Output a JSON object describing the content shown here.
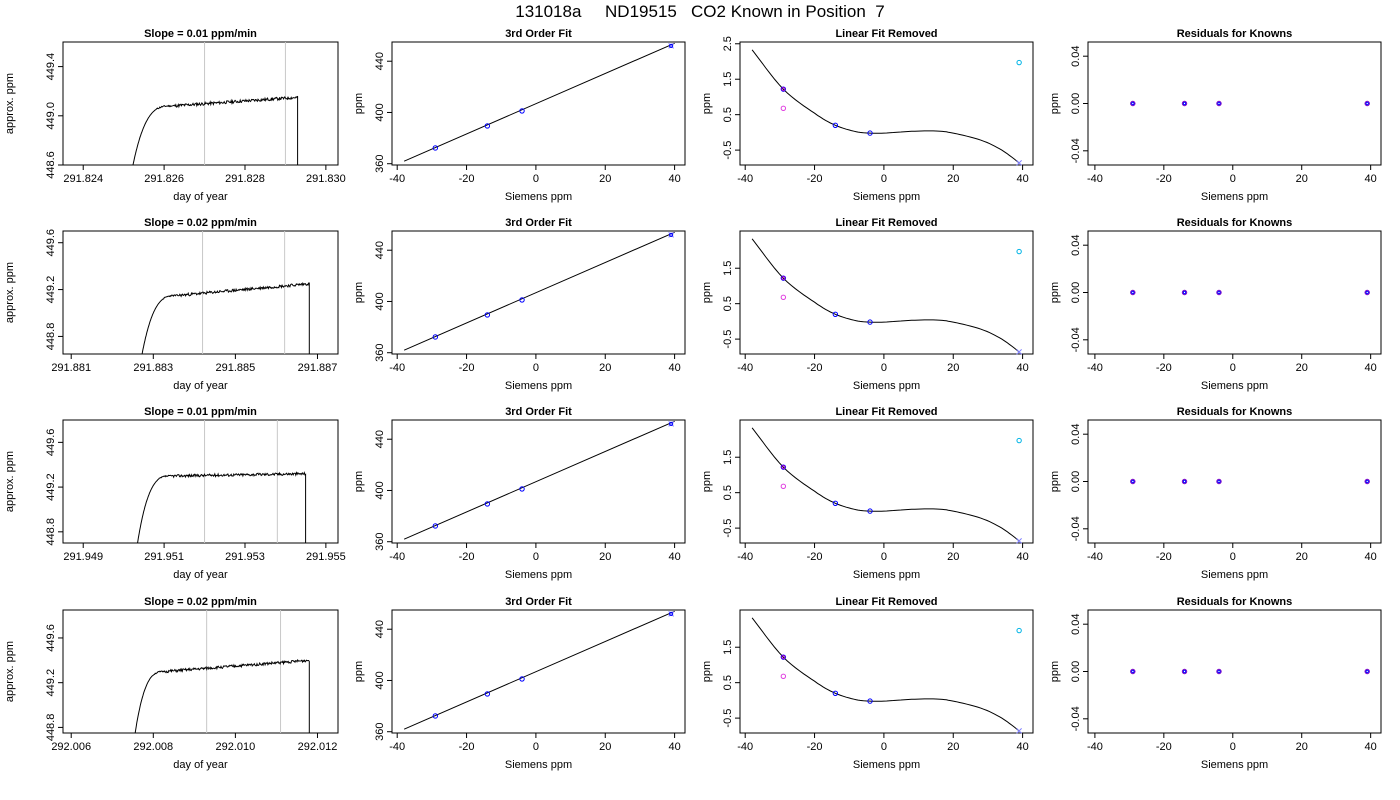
{
  "title": "131018a     ND19515   CO2 Known in Position  7",
  "colors": {
    "trace": "#000000",
    "marker_line": "#c8c8c8",
    "fit_line": "#000000",
    "point_blue": "#0000ff",
    "point_purple": "#a000c8",
    "point_magenta": "#e040e0",
    "point_cyan": "#00b4e6",
    "point_lightblue": "#8080ff",
    "residual_point": "#8000c0"
  },
  "chart_data": [
    {
      "type": "line",
      "panel": "trace-1",
      "title": "Slope =  0.01  ppm/min",
      "xlabel": "day of year",
      "ylabel": "approx. ppm",
      "xlim": [
        291.8235,
        291.8303
      ],
      "ylim": [
        448.6,
        449.6
      ],
      "xticks": [
        291.824,
        291.826,
        291.828,
        291.83
      ],
      "xtick_labels": [
        "291.824",
        "291.826",
        "291.828",
        "291.830"
      ],
      "yticks": [
        448.6,
        449.0,
        449.4
      ],
      "ytick_labels": [
        "448.6",
        "449.0",
        "449.4"
      ],
      "marker_lines": [
        291.827,
        291.829
      ],
      "trace": {
        "start": 291.8252,
        "rise_end": 291.8262,
        "end": 291.8293,
        "low": 448.55,
        "plateau_start": 449.08,
        "plateau_end": 449.15,
        "noise": 0.012,
        "seed": 11
      }
    },
    {
      "type": "line",
      "panel": "trace-2",
      "title": "Slope =  0.02  ppm/min",
      "xlabel": "day of year",
      "ylabel": "approx. ppm",
      "xlim": [
        291.8808,
        291.8875
      ],
      "ylim": [
        448.65,
        449.7
      ],
      "xticks": [
        291.881,
        291.883,
        291.885,
        291.887
      ],
      "xtick_labels": [
        "291.881",
        "291.883",
        "291.885",
        "291.887"
      ],
      "yticks": [
        448.8,
        449.2,
        449.6
      ],
      "ytick_labels": [
        "448.8",
        "449.2",
        "449.6"
      ],
      "marker_lines": [
        291.8842,
        291.8862
      ],
      "trace": {
        "start": 291.8827,
        "rise_end": 291.8836,
        "end": 291.8868,
        "low": 448.6,
        "plateau_start": 449.15,
        "plateau_end": 449.25,
        "noise": 0.012,
        "seed": 23
      }
    },
    {
      "type": "line",
      "panel": "trace-3",
      "title": "Slope =  0.01  ppm/min",
      "xlabel": "day of year",
      "ylabel": "approx. ppm",
      "xlim": [
        291.9485,
        291.9553
      ],
      "ylim": [
        448.7,
        449.8
      ],
      "xticks": [
        291.949,
        291.951,
        291.953,
        291.955
      ],
      "xtick_labels": [
        "291.949",
        "291.951",
        "291.953",
        "291.955"
      ],
      "yticks": [
        448.8,
        449.2,
        449.6
      ],
      "ytick_labels": [
        "448.8",
        "449.2",
        "449.6"
      ],
      "marker_lines": [
        291.952,
        291.9538
      ],
      "trace": {
        "start": 291.9503,
        "rise_end": 291.9512,
        "end": 291.9545,
        "low": 448.6,
        "plateau_start": 449.3,
        "plateau_end": 449.32,
        "noise": 0.012,
        "seed": 37
      }
    },
    {
      "type": "line",
      "panel": "trace-4",
      "title": "Slope =  0.02  ppm/min",
      "xlabel": "day of year",
      "ylabel": "approx. ppm",
      "xlim": [
        292.0058,
        292.0125
      ],
      "ylim": [
        448.75,
        449.85
      ],
      "xticks": [
        292.006,
        292.008,
        292.01,
        292.012
      ],
      "xtick_labels": [
        "292.006",
        "292.008",
        "292.010",
        "292.012"
      ],
      "yticks": [
        448.8,
        449.2,
        449.6
      ],
      "ytick_labels": [
        "448.8",
        "449.2",
        "449.6"
      ],
      "marker_lines": [
        292.0093,
        292.0111
      ],
      "trace": {
        "start": 292.0075,
        "rise_end": 292.0083,
        "end": 292.0118,
        "low": 448.6,
        "plateau_start": 449.3,
        "plateau_end": 449.4,
        "noise": 0.012,
        "seed": 51
      }
    },
    {
      "type": "scatter",
      "panel": "fit-1",
      "title": "3rd Order Fit",
      "xlabel": "Siemens ppm",
      "ylabel": "ppm",
      "xlim": [
        -41.5,
        43
      ],
      "ylim": [
        359,
        455
      ],
      "xticks": [
        -40,
        -20,
        0,
        20,
        40
      ],
      "xtick_labels": [
        "-40",
        "-20",
        "0",
        "20",
        "40"
      ],
      "yticks": [
        360,
        400,
        440
      ],
      "ytick_labels": [
        "360",
        "400",
        "440"
      ],
      "line": {
        "x": [
          -38,
          40
        ],
        "y": [
          362,
          454
        ]
      },
      "points": {
        "x": [
          -29,
          -14,
          -4,
          39
        ],
        "y": [
          372.3,
          389.5,
          401.2,
          452.0
        ]
      }
    },
    {
      "type": "scatter",
      "panel": "fit-2",
      "title": "3rd Order Fit",
      "xlabel": "Siemens ppm",
      "ylabel": "ppm",
      "xlim": [
        -41.5,
        43
      ],
      "ylim": [
        359,
        455
      ],
      "xticks": [
        -40,
        -20,
        0,
        20,
        40
      ],
      "xtick_labels": [
        "-40",
        "-20",
        "0",
        "20",
        "40"
      ],
      "yticks": [
        360,
        400,
        440
      ],
      "ytick_labels": [
        "360",
        "400",
        "440"
      ],
      "line": {
        "x": [
          -38,
          40
        ],
        "y": [
          362,
          454
        ]
      },
      "points": {
        "x": [
          -29,
          -14,
          -4,
          39
        ],
        "y": [
          372.3,
          389.5,
          401.2,
          452.0
        ]
      }
    },
    {
      "type": "scatter",
      "panel": "fit-3",
      "title": "3rd Order Fit",
      "xlabel": "Siemens ppm",
      "ylabel": "ppm",
      "xlim": [
        -41.5,
        43
      ],
      "ylim": [
        359,
        455
      ],
      "xticks": [
        -40,
        -20,
        0,
        20,
        40
      ],
      "xtick_labels": [
        "-40",
        "-20",
        "0",
        "20",
        "40"
      ],
      "yticks": [
        360,
        400,
        440
      ],
      "ytick_labels": [
        "360",
        "400",
        "440"
      ],
      "line": {
        "x": [
          -38,
          40
        ],
        "y": [
          362,
          454
        ]
      },
      "points": {
        "x": [
          -29,
          -14,
          -4,
          39
        ],
        "y": [
          372.3,
          389.5,
          401.2,
          452.0
        ]
      }
    },
    {
      "type": "scatter",
      "panel": "fit-4",
      "title": "3rd Order Fit",
      "xlabel": "Siemens ppm",
      "ylabel": "ppm",
      "xlim": [
        -41.5,
        43
      ],
      "ylim": [
        359,
        455
      ],
      "xticks": [
        -40,
        -20,
        0,
        20,
        40
      ],
      "xtick_labels": [
        "-40",
        "-20",
        "0",
        "20",
        "40"
      ],
      "yticks": [
        360,
        400,
        440
      ],
      "ytick_labels": [
        "360",
        "400",
        "440"
      ],
      "line": {
        "x": [
          -38,
          40
        ],
        "y": [
          362,
          454
        ]
      },
      "points": {
        "x": [
          -29,
          -14,
          -4,
          39
        ],
        "y": [
          372.3,
          389.5,
          401.2,
          452.0
        ]
      }
    },
    {
      "type": "scatter",
      "panel": "lin-1",
      "title": "Linear Fit Removed",
      "xlabel": "Siemens ppm",
      "ylabel": "ppm",
      "xlim": [
        -41.5,
        43
      ],
      "ylim": [
        -0.92,
        2.55
      ],
      "xticks": [
        -40,
        -20,
        0,
        20,
        40
      ],
      "xtick_labels": [
        "-40",
        "-20",
        "0",
        "20",
        "40"
      ],
      "yticks": [
        -0.5,
        0.5,
        1.5,
        2.5
      ],
      "ytick_labels": [
        "-0.5",
        "0.5",
        "1.5",
        "2.5"
      ],
      "curve": {
        "x": [
          -38,
          -29,
          -20,
          -14,
          -8,
          -4,
          0,
          8,
          15,
          20,
          28,
          34,
          39
        ],
        "y": [
          2.33,
          1.22,
          0.54,
          0.2,
          0.02,
          -0.02,
          -0.02,
          0.03,
          0.04,
          -0.02,
          -0.22,
          -0.5,
          -0.86
        ]
      },
      "points": [
        {
          "x": -29,
          "y": 1.22,
          "color": "blue"
        },
        {
          "x": -29,
          "y": 1.22,
          "color": "purple"
        },
        {
          "x": -29,
          "y": 0.68,
          "color": "magenta"
        },
        {
          "x": -14,
          "y": 0.2,
          "color": "blue"
        },
        {
          "x": -4,
          "y": -0.02,
          "color": "blue"
        },
        {
          "x": 39,
          "y": 1.97,
          "color": "cyan"
        },
        {
          "x": 39,
          "y": -0.86,
          "color": "lightblue"
        }
      ]
    },
    {
      "type": "scatter",
      "panel": "lin-2",
      "title": "Linear Fit Removed",
      "xlabel": "Siemens ppm",
      "ylabel": "ppm",
      "xlim": [
        -41.5,
        43
      ],
      "ylim": [
        -0.92,
        2.55
      ],
      "xticks": [
        -40,
        -20,
        0,
        20,
        40
      ],
      "xtick_labels": [
        "-40",
        "-20",
        "0",
        "20",
        "40"
      ],
      "yticks": [
        -0.5,
        0.5,
        1.5
      ],
      "ytick_labels": [
        "-0.5",
        "0.5",
        "1.5"
      ],
      "curve": {
        "x": [
          -38,
          -29,
          -20,
          -14,
          -8,
          -4,
          0,
          8,
          15,
          20,
          28,
          34,
          39
        ],
        "y": [
          2.33,
          1.22,
          0.54,
          0.2,
          0.02,
          -0.02,
          -0.02,
          0.03,
          0.04,
          -0.02,
          -0.22,
          -0.5,
          -0.86
        ]
      },
      "points": [
        {
          "x": -29,
          "y": 1.22,
          "color": "blue"
        },
        {
          "x": -29,
          "y": 1.22,
          "color": "purple"
        },
        {
          "x": -29,
          "y": 0.68,
          "color": "magenta"
        },
        {
          "x": -14,
          "y": 0.2,
          "color": "blue"
        },
        {
          "x": -4,
          "y": -0.02,
          "color": "blue"
        },
        {
          "x": 39,
          "y": 1.97,
          "color": "cyan"
        },
        {
          "x": 39,
          "y": -0.86,
          "color": "lightblue"
        }
      ]
    },
    {
      "type": "scatter",
      "panel": "lin-3",
      "title": "Linear Fit Removed",
      "xlabel": "Siemens ppm",
      "ylabel": "ppm",
      "xlim": [
        -41.5,
        43
      ],
      "ylim": [
        -0.92,
        2.55
      ],
      "xticks": [
        -40,
        -20,
        0,
        20,
        40
      ],
      "xtick_labels": [
        "-40",
        "-20",
        "0",
        "20",
        "40"
      ],
      "yticks": [
        -0.5,
        0.5,
        1.5
      ],
      "ytick_labels": [
        "-0.5",
        "0.5",
        "1.5"
      ],
      "curve": {
        "x": [
          -38,
          -29,
          -20,
          -14,
          -8,
          -4,
          0,
          8,
          15,
          20,
          28,
          34,
          39
        ],
        "y": [
          2.33,
          1.22,
          0.54,
          0.2,
          0.02,
          -0.02,
          -0.02,
          0.03,
          0.04,
          -0.02,
          -0.22,
          -0.5,
          -0.86
        ]
      },
      "points": [
        {
          "x": -29,
          "y": 1.22,
          "color": "blue"
        },
        {
          "x": -29,
          "y": 1.22,
          "color": "purple"
        },
        {
          "x": -29,
          "y": 0.68,
          "color": "magenta"
        },
        {
          "x": -14,
          "y": 0.2,
          "color": "blue"
        },
        {
          "x": -4,
          "y": -0.02,
          "color": "blue"
        },
        {
          "x": 39,
          "y": 1.97,
          "color": "cyan"
        },
        {
          "x": 39,
          "y": -0.86,
          "color": "lightblue"
        }
      ]
    },
    {
      "type": "scatter",
      "panel": "lin-4",
      "title": "Linear Fit Removed",
      "xlabel": "Siemens ppm",
      "ylabel": "ppm",
      "xlim": [
        -41.5,
        43
      ],
      "ylim": [
        -0.92,
        2.55
      ],
      "xticks": [
        -40,
        -20,
        0,
        20,
        40
      ],
      "xtick_labels": [
        "-40",
        "-20",
        "0",
        "20",
        "40"
      ],
      "yticks": [
        -0.5,
        0.5,
        1.5
      ],
      "ytick_labels": [
        "-0.5",
        "0.5",
        "1.5"
      ],
      "curve": {
        "x": [
          -38,
          -29,
          -20,
          -14,
          -8,
          -4,
          0,
          8,
          15,
          20,
          28,
          34,
          39
        ],
        "y": [
          2.33,
          1.22,
          0.54,
          0.2,
          0.02,
          -0.02,
          -0.02,
          0.03,
          0.04,
          -0.02,
          -0.22,
          -0.5,
          -0.86
        ]
      },
      "points": [
        {
          "x": -29,
          "y": 1.22,
          "color": "blue"
        },
        {
          "x": -29,
          "y": 1.22,
          "color": "purple"
        },
        {
          "x": -29,
          "y": 0.68,
          "color": "magenta"
        },
        {
          "x": -14,
          "y": 0.2,
          "color": "blue"
        },
        {
          "x": -4,
          "y": -0.02,
          "color": "blue"
        },
        {
          "x": 39,
          "y": 1.97,
          "color": "cyan"
        },
        {
          "x": 39,
          "y": -0.86,
          "color": "lightblue"
        }
      ]
    },
    {
      "type": "scatter",
      "panel": "res-1",
      "title": "Residuals for Knowns",
      "xlabel": "Siemens ppm",
      "ylabel": "ppm",
      "xlim": [
        -42,
        43
      ],
      "ylim": [
        -0.052,
        0.052
      ],
      "xticks": [
        -40,
        -20,
        0,
        20,
        40
      ],
      "xtick_labels": [
        "-40",
        "-20",
        "0",
        "20",
        "40"
      ],
      "yticks": [
        -0.04,
        0.0,
        0.04
      ],
      "ytick_labels": [
        "-0.04",
        "0.00",
        "0.04"
      ],
      "points": {
        "x": [
          -29,
          -14,
          -4,
          39
        ],
        "y": [
          0,
          0,
          0,
          0
        ]
      }
    },
    {
      "type": "scatter",
      "panel": "res-2",
      "title": "Residuals for Knowns",
      "xlabel": "Siemens ppm",
      "ylabel": "ppm",
      "xlim": [
        -42,
        43
      ],
      "ylim": [
        -0.052,
        0.052
      ],
      "xticks": [
        -40,
        -20,
        0,
        20,
        40
      ],
      "xtick_labels": [
        "-40",
        "-20",
        "0",
        "20",
        "40"
      ],
      "yticks": [
        -0.04,
        0.0,
        0.04
      ],
      "ytick_labels": [
        "-0.04",
        "0.00",
        "0.04"
      ],
      "points": {
        "x": [
          -29,
          -14,
          -4,
          39
        ],
        "y": [
          0,
          0,
          0,
          0
        ]
      }
    },
    {
      "type": "scatter",
      "panel": "res-3",
      "title": "Residuals for Knowns",
      "xlabel": "Siemens ppm",
      "ylabel": "ppm",
      "xlim": [
        -42,
        43
      ],
      "ylim": [
        -0.052,
        0.052
      ],
      "xticks": [
        -40,
        -20,
        0,
        20,
        40
      ],
      "xtick_labels": [
        "-40",
        "-20",
        "0",
        "20",
        "40"
      ],
      "yticks": [
        -0.04,
        0.0,
        0.04
      ],
      "ytick_labels": [
        "-0.04",
        "0.00",
        "0.04"
      ],
      "points": {
        "x": [
          -29,
          -14,
          -4,
          39
        ],
        "y": [
          0,
          0,
          0,
          0
        ]
      }
    },
    {
      "type": "scatter",
      "panel": "res-4",
      "title": "Residuals for Knowns",
      "xlabel": "Siemens ppm",
      "ylabel": "ppm",
      "xlim": [
        -42,
        43
      ],
      "ylim": [
        -0.052,
        0.052
      ],
      "xticks": [
        -40,
        -20,
        0,
        20,
        40
      ],
      "xtick_labels": [
        "-40",
        "-20",
        "0",
        "20",
        "40"
      ],
      "yticks": [
        -0.04,
        0.0,
        0.04
      ],
      "ytick_labels": [
        "-0.04",
        "0.00",
        "0.04"
      ],
      "points": {
        "x": [
          -29,
          -14,
          -4,
          39
        ],
        "y": [
          0,
          0,
          0,
          0
        ]
      }
    }
  ]
}
